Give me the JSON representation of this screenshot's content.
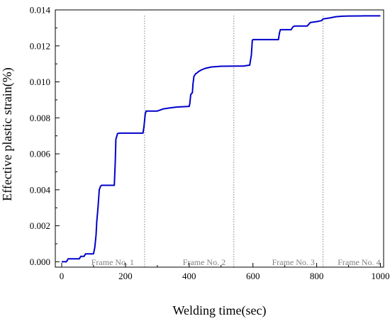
{
  "chart_data": {
    "type": "line",
    "title": "",
    "xlabel": "Welding time(sec)",
    "ylabel": "Effective plastic strain(%)",
    "xlim": [
      -20,
      1010
    ],
    "ylim": [
      -0.0003,
      0.014
    ],
    "x_ticks": [
      0,
      200,
      400,
      600,
      800,
      1000
    ],
    "x_tick_labels": [
      "0",
      "200",
      "400",
      "600",
      "800",
      "1000"
    ],
    "y_ticks": [
      0.0,
      0.002,
      0.004,
      0.006,
      0.008,
      0.01,
      0.012,
      0.014
    ],
    "y_tick_labels": [
      "0.000",
      "0.002",
      "0.004",
      "0.006",
      "0.008",
      "0.010",
      "0.012",
      "0.014"
    ],
    "grid": false,
    "series_color": "#0000cc",
    "divider_color": "#808080",
    "series": [
      {
        "x": [
          0,
          15,
          20,
          55,
          60,
          70,
          75,
          100,
          104,
          108,
          110,
          114,
          118,
          122,
          125,
          130,
          140,
          165,
          168,
          170,
          175,
          180,
          200,
          255,
          258,
          262,
          265,
          300,
          320,
          340,
          360,
          380,
          400,
          402,
          405,
          410,
          412,
          415,
          420,
          425,
          430,
          440,
          450,
          470,
          500,
          550,
          570,
          590,
          595,
          598,
          600,
          640,
          680,
          683,
          686,
          690,
          700,
          720,
          725,
          730,
          770,
          780,
          800,
          815,
          820,
          840,
          860,
          880,
          900,
          950,
          1000
        ],
        "y": [
          0.0,
          0.0,
          0.00016,
          0.00016,
          0.0003,
          0.0003,
          0.00044,
          0.00044,
          0.0008,
          0.0015,
          0.0022,
          0.003,
          0.004,
          0.0042,
          0.00425,
          0.00425,
          0.00425,
          0.00425,
          0.0055,
          0.0068,
          0.00712,
          0.00715,
          0.00715,
          0.00715,
          0.0075,
          0.0082,
          0.00838,
          0.00838,
          0.0085,
          0.00855,
          0.0086,
          0.00862,
          0.00864,
          0.0088,
          0.0093,
          0.0094,
          0.0099,
          0.0103,
          0.01045,
          0.0105,
          0.01058,
          0.01068,
          0.01075,
          0.01083,
          0.01087,
          0.01088,
          0.01088,
          0.01093,
          0.0115,
          0.0123,
          0.01235,
          0.01235,
          0.01235,
          0.0127,
          0.0129,
          0.0129,
          0.0129,
          0.0129,
          0.01305,
          0.0131,
          0.0131,
          0.0133,
          0.01335,
          0.0134,
          0.0135,
          0.01355,
          0.01362,
          0.01365,
          0.01366,
          0.01367,
          0.01367
        ]
      }
    ],
    "dividers_x": [
      260,
      540,
      820
    ],
    "frame_labels": [
      {
        "text": "Frame No. 1",
        "x": 160
      },
      {
        "text": "Frame No. 2",
        "x": 447
      },
      {
        "text": "Frame No. 3",
        "x": 727
      },
      {
        "text": "Frame No. 4",
        "x": 933
      }
    ]
  }
}
